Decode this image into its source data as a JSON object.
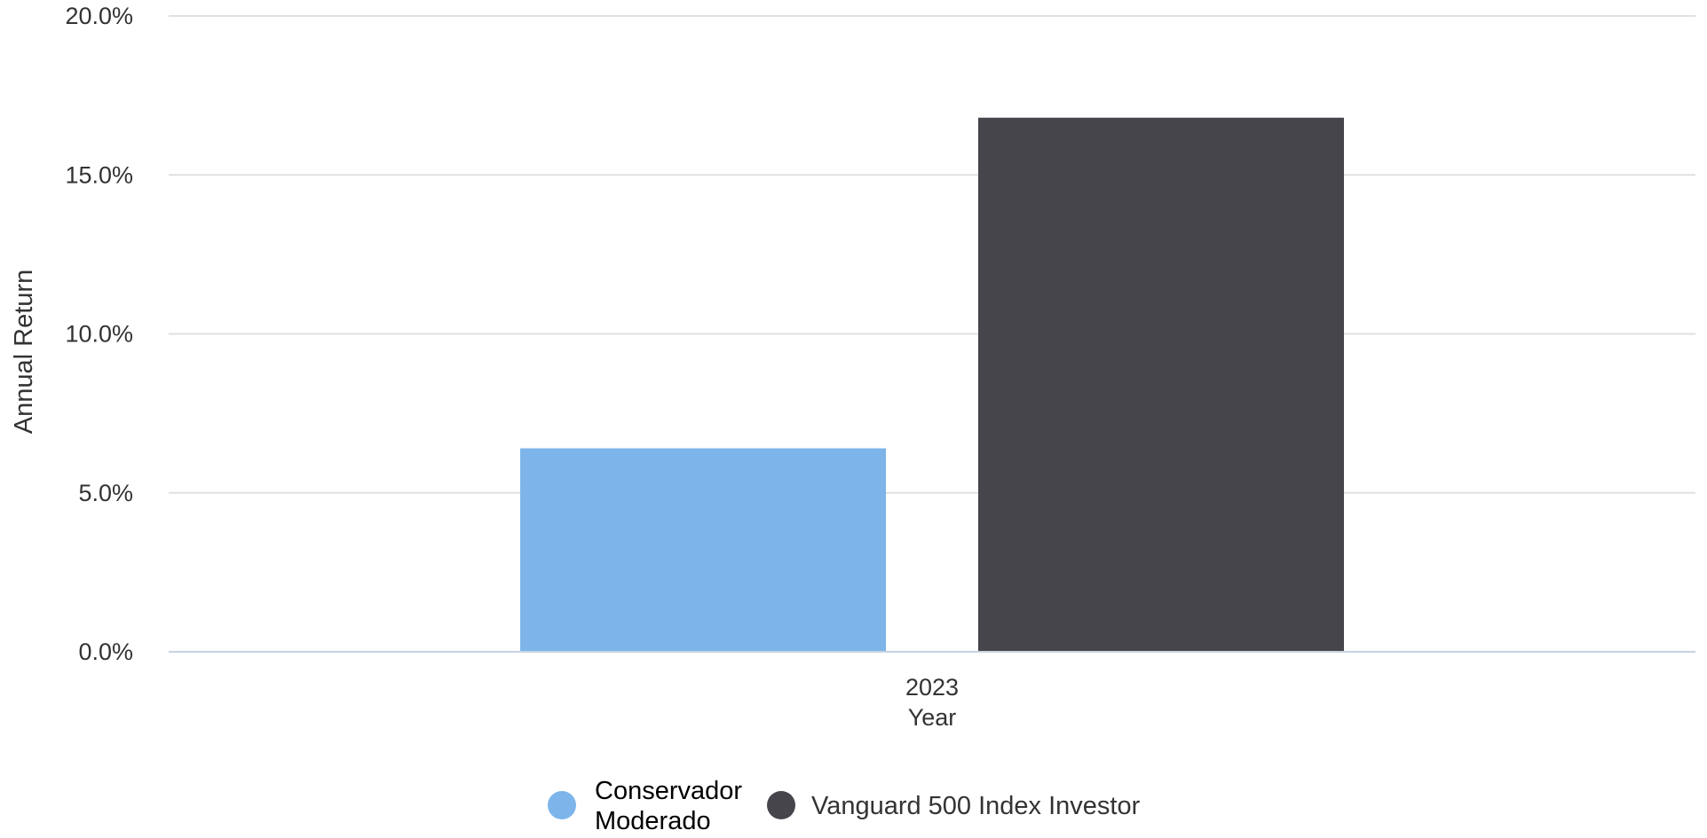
{
  "chart_data": {
    "type": "bar",
    "categories": [
      "2023"
    ],
    "series": [
      {
        "name": "Conservador Moderado",
        "legend_lines": [
          "Conservador",
          "Moderado"
        ],
        "values": [
          6.4
        ],
        "color": "#7db5ea"
      },
      {
        "name": "Vanguard 500 Index Investor",
        "legend_lines": [
          "Vanguard 500 Index Investor"
        ],
        "values": [
          16.8
        ],
        "color": "#46454b"
      }
    ],
    "xlabel": "Year",
    "ylabel": "Annual Return",
    "ylim": [
      0,
      20
    ],
    "yticks": [
      0,
      5,
      10,
      15,
      20
    ],
    "ytick_labels": [
      "0.0%",
      "5.0%",
      "10.0%",
      "15.0%",
      "20.0%"
    ],
    "grid": true,
    "legend_position": "bottom-center",
    "colors": {
      "gridline": "#e0e0e0",
      "baseline": "#c6d4e1",
      "tick_text": "#333333",
      "legend_text": "#000000"
    }
  }
}
